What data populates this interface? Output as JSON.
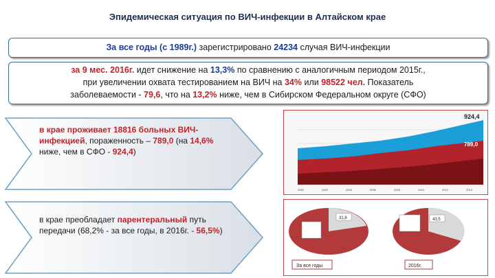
{
  "title": "Эпидемическая ситуация по ВИЧ-инфекции в Алтайском крае",
  "box1": {
    "part1": "За все годы (с 1989г.)",
    "part2": " зарегистрировано ",
    "part3": "24234",
    "part4": " случая ВИЧ-инфекции"
  },
  "box2": {
    "line1": {
      "a": "за 9 мес. 2016г.",
      "b": " идет снижение на ",
      "c": "13,3%",
      "d": " по сравнению с  аналогичным периодом 2015г.,"
    },
    "line2": {
      "a": "при увеличении охвата тестированием на ВИЧ на ",
      "b": "34%",
      "c": " или ",
      "d": "98522 чел.",
      "e": " Показатель"
    },
    "line3": {
      "a": "заболеваемости - ",
      "b": "79,6",
      "c": ", что на ",
      "d": "13,2%",
      "e": " ниже, чем в Сибирском Федеральном округе (СФО)"
    }
  },
  "block1": {
    "a": "в крае проживает 18816 больных ВИЧ-инфекцией",
    "b": ", пораженность – ",
    "c": "789,0",
    "d": " (на ",
    "e": "14,6%",
    "f": " ниже, чем в СФО - ",
    "g": "924,4",
    "h": ")"
  },
  "block2": {
    "a": "в крае преобладает ",
    "b": "парентеральный",
    "c": " путь передачи (68,2% - за все годы, в 2016г. - ",
    "d": "56,5%",
    "e": ")"
  },
  "area_chart": {
    "label_top": "924,4",
    "label_mid": "789,0"
  },
  "pies": {
    "left_label": "За все годы",
    "right_label": "2016г.",
    "left_value": "31,8",
    "right_value": "43,5"
  },
  "colors": {
    "accent_red": "#c0232b",
    "accent_blue": "#1f3a93",
    "chart_blue": "#1b9fd9"
  }
}
